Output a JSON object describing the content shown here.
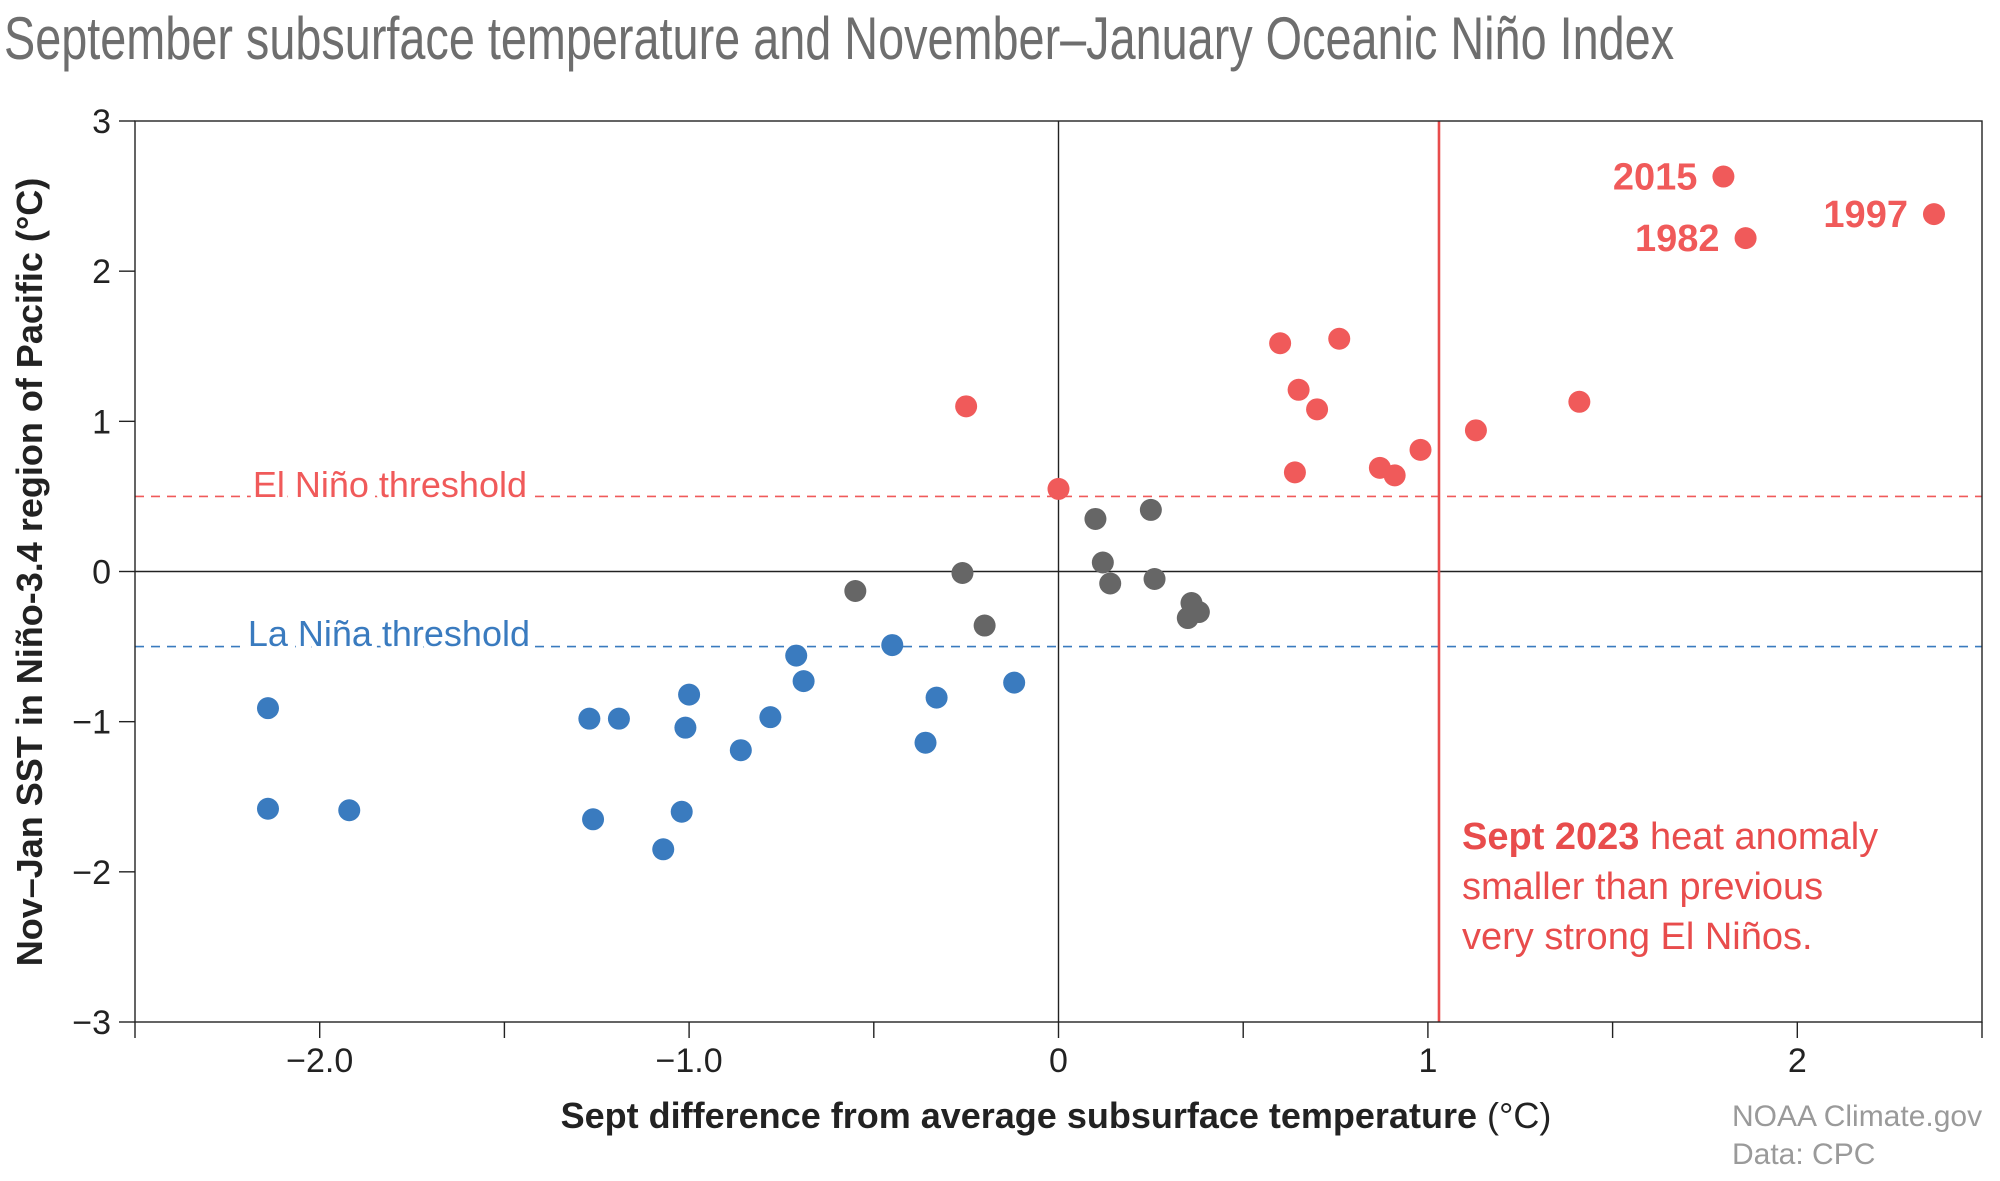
{
  "chart_data": {
    "type": "scatter",
    "title": "September subsurface temperature and November–January Oceanic Niño Index",
    "xlabel": "Sept difference from average subsurface temperature",
    "xlabel_unit": "(°C)",
    "ylabel": "Nov–Jan SST in Niño-3.4 region of Pacific (°C)",
    "xlim": [
      -2.5,
      2.5
    ],
    "ylim": [
      -3,
      3
    ],
    "x_ticks": [
      {
        "value": -2,
        "label": "−2.0"
      },
      {
        "value": -1,
        "label": "−1.0"
      },
      {
        "value": 0,
        "label": "0"
      },
      {
        "value": 1,
        "label": "1"
      },
      {
        "value": 2,
        "label": "2"
      }
    ],
    "x_minor_ticks": [
      -2.5,
      -1.5,
      -0.5,
      0.5,
      1.5,
      2.5
    ],
    "y_ticks": [
      {
        "value": -3,
        "label": "−3"
      },
      {
        "value": -2,
        "label": "−2"
      },
      {
        "value": -1,
        "label": "−1"
      },
      {
        "value": 0,
        "label": "0"
      },
      {
        "value": 1,
        "label": "1"
      },
      {
        "value": 2,
        "label": "2"
      },
      {
        "value": 3,
        "label": "3"
      }
    ],
    "grid": false,
    "zero_lines": true,
    "thresholds": [
      {
        "label": "El Niño threshold",
        "y": 0.5,
        "color": "#f05a5a"
      },
      {
        "label": "La Niña threshold",
        "y": -0.5,
        "color": "#3a7bbf"
      }
    ],
    "reference_line": {
      "x": 1.03,
      "color": "#e84c4c"
    },
    "annotation": {
      "bold": "Sept 2023",
      "line1_rest": " heat anomaly",
      "line2": "smaller than previous",
      "line3": "very strong El Niños."
    },
    "colors": {
      "el_nino": "#f05a5a",
      "neutral": "#666666",
      "la_nina": "#3a7bbf"
    },
    "series": [
      {
        "category": "el_nino",
        "points": [
          {
            "x": 1.8,
            "y": 2.63,
            "label": "2015"
          },
          {
            "x": 1.86,
            "y": 2.22,
            "label": "1982"
          },
          {
            "x": 2.37,
            "y": 2.38,
            "label": "1997"
          },
          {
            "x": -0.25,
            "y": 1.1
          },
          {
            "x": 0.0,
            "y": 0.55
          },
          {
            "x": 0.6,
            "y": 1.52
          },
          {
            "x": 0.65,
            "y": 1.21
          },
          {
            "x": 0.76,
            "y": 1.55
          },
          {
            "x": 0.7,
            "y": 1.08
          },
          {
            "x": 0.64,
            "y": 0.66
          },
          {
            "x": 0.87,
            "y": 0.69
          },
          {
            "x": 0.91,
            "y": 0.64
          },
          {
            "x": 0.98,
            "y": 0.81
          },
          {
            "x": 1.13,
            "y": 0.94
          },
          {
            "x": 1.41,
            "y": 1.13
          }
        ]
      },
      {
        "category": "neutral",
        "points": [
          {
            "x": -0.55,
            "y": -0.13
          },
          {
            "x": -0.26,
            "y": -0.01
          },
          {
            "x": -0.2,
            "y": -0.36
          },
          {
            "x": 0.1,
            "y": 0.35
          },
          {
            "x": 0.12,
            "y": 0.06
          },
          {
            "x": 0.14,
            "y": -0.08
          },
          {
            "x": 0.25,
            "y": 0.41
          },
          {
            "x": 0.26,
            "y": -0.05
          },
          {
            "x": 0.36,
            "y": -0.21
          },
          {
            "x": 0.35,
            "y": -0.31
          },
          {
            "x": 0.38,
            "y": -0.27
          }
        ]
      },
      {
        "category": "la_nina",
        "points": [
          {
            "x": -2.14,
            "y": -0.91
          },
          {
            "x": -2.14,
            "y": -1.58
          },
          {
            "x": -1.92,
            "y": -1.59
          },
          {
            "x": -1.27,
            "y": -0.98
          },
          {
            "x": -1.26,
            "y": -1.65
          },
          {
            "x": -1.19,
            "y": -0.98
          },
          {
            "x": -1.07,
            "y": -1.85
          },
          {
            "x": -1.02,
            "y": -1.6
          },
          {
            "x": -1.01,
            "y": -1.04
          },
          {
            "x": -1.0,
            "y": -0.82
          },
          {
            "x": -0.86,
            "y": -1.19
          },
          {
            "x": -0.78,
            "y": -0.97
          },
          {
            "x": -0.71,
            "y": -0.56
          },
          {
            "x": -0.69,
            "y": -0.73
          },
          {
            "x": -0.45,
            "y": -0.49
          },
          {
            "x": -0.36,
            "y": -1.14
          },
          {
            "x": -0.33,
            "y": -0.84
          },
          {
            "x": -0.12,
            "y": -0.74
          }
        ]
      }
    ]
  },
  "credit": {
    "source": "NOAA Climate.gov",
    "data": "Data: CPC"
  }
}
